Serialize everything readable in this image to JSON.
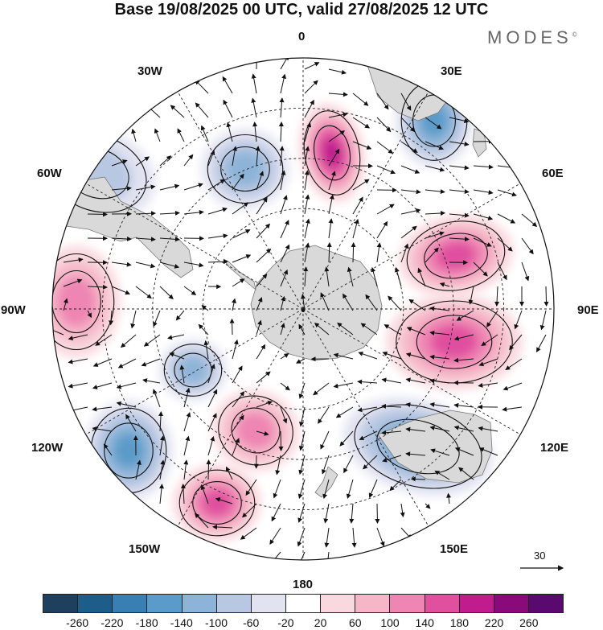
{
  "title": "Base 19/08/2025 00 UTC, valid 27/08/2025 12 UTC",
  "brand": "MODES",
  "brand_mark": "©",
  "longitude_labels": {
    "top": "0",
    "bottom": "180",
    "w30": "30W",
    "e30": "30E",
    "w60": "60W",
    "e60": "60E",
    "w90": "90W",
    "e90": "90E",
    "w120": "120W",
    "e120": "120E",
    "w150": "150W",
    "e150": "150E"
  },
  "reference_vector": "30",
  "colorbar": {
    "ticks": [
      "-260",
      "-220",
      "-180",
      "-140",
      "-100",
      "-60",
      "-20",
      "20",
      "60",
      "100",
      "140",
      "180",
      "220",
      "260"
    ],
    "colors": [
      "#1f3f5f",
      "#1e5c8a",
      "#3a7fb4",
      "#5b9bc9",
      "#8db4d8",
      "#b9c8e2",
      "#e2e3f1",
      "#ffffff",
      "#f9d9df",
      "#f5b7c8",
      "#ee85b3",
      "#e0509f",
      "#c01c8e",
      "#8b0a7a",
      "#5a0a6e"
    ]
  },
  "anomalies": [
    {
      "sign": "pos",
      "level": 4
    },
    {
      "sign": "neg",
      "level": 2
    },
    {
      "sign": "neg",
      "level": 3
    },
    {
      "sign": "pos",
      "level": 3
    },
    {
      "sign": "pos",
      "level": 3
    },
    {
      "sign": "neg",
      "level": 3
    },
    {
      "sign": "neg",
      "level": 2
    },
    {
      "sign": "pos",
      "level": 2
    },
    {
      "sign": "neg",
      "level": 3
    },
    {
      "sign": "pos",
      "level": 3
    },
    {
      "sign": "pos",
      "level": 2
    },
    {
      "sign": "neg",
      "level": 1
    }
  ]
}
